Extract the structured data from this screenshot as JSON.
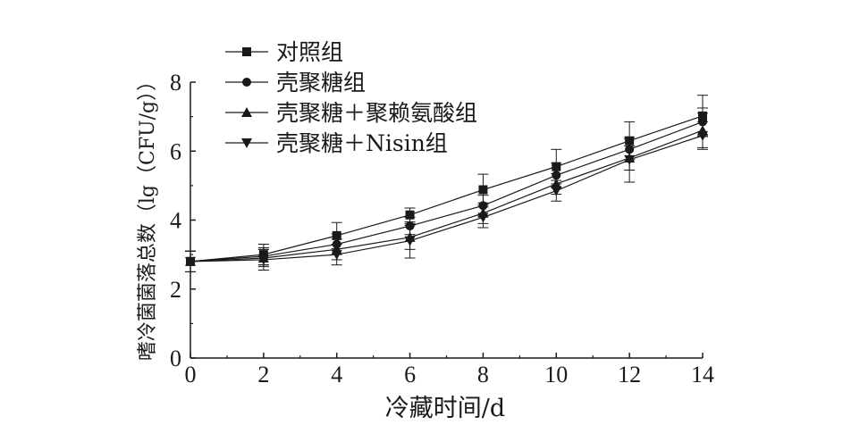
{
  "chart_data": {
    "type": "line",
    "xlabel": "冷藏时间/d",
    "ylabel": "嗜冷菌菌落总数（lg（CFU/g））",
    "x": [
      0,
      2,
      4,
      6,
      8,
      10,
      12,
      14
    ],
    "xlim": [
      0,
      14
    ],
    "ylim": [
      0,
      8
    ],
    "xticks": [
      "0",
      "2",
      "4",
      "6",
      "8",
      "10",
      "12",
      "14"
    ],
    "yticks": [
      "0",
      "2",
      "4",
      "6",
      "8"
    ],
    "grid": false,
    "legend_position": "top-left",
    "series": [
      {
        "name": "对照组",
        "marker": "square",
        "values": [
          2.8,
          3.0,
          3.55,
          4.15,
          4.88,
          5.55,
          6.3,
          7.02
        ],
        "errors": [
          0.3,
          0.3,
          0.38,
          0.2,
          0.45,
          0.5,
          0.55,
          0.6
        ]
      },
      {
        "name": "壳聚糖组",
        "marker": "circle",
        "values": [
          2.8,
          2.95,
          3.3,
          3.83,
          4.42,
          5.3,
          6.05,
          6.85
        ],
        "errors": [
          0.3,
          0.25,
          0.3,
          0.25,
          0.3,
          0.35,
          0.3,
          0.4
        ]
      },
      {
        "name": "壳聚糖＋聚赖氨酸组",
        "marker": "triangle-up",
        "values": [
          2.8,
          2.9,
          3.15,
          3.5,
          4.2,
          5.05,
          5.8,
          6.6
        ],
        "errors": [
          0.3,
          0.25,
          0.3,
          0.35,
          0.3,
          0.3,
          0.35,
          0.5
        ]
      },
      {
        "name": "壳聚糖＋Nisin组",
        "marker": "triangle-down",
        "values": [
          2.8,
          2.85,
          3.0,
          3.4,
          4.08,
          4.85,
          5.75,
          6.45
        ],
        "errors": [
          0.3,
          0.3,
          0.3,
          0.5,
          0.3,
          0.3,
          0.65,
          0.4
        ]
      }
    ],
    "colors": {
      "line": "#1a1a1a",
      "background": "#ffffff"
    }
  }
}
